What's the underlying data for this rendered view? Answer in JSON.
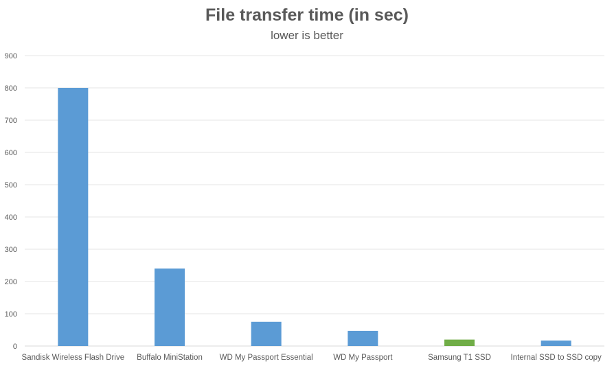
{
  "chart_data": {
    "type": "bar",
    "title": "File transfer time (in sec)",
    "subtitle": "lower is better",
    "xlabel": "",
    "ylabel": "",
    "categories": [
      "Sandisk Wireless Flash Drive",
      "Buffalo MiniStation",
      "WD My Passport Essential",
      "WD My Passport",
      "Samsung T1 SSD",
      "Internal SSD to SSD copy"
    ],
    "values": [
      800,
      240,
      75,
      47,
      20,
      17
    ],
    "bar_colors": [
      "#5b9bd5",
      "#5b9bd5",
      "#5b9bd5",
      "#5b9bd5",
      "#70ad47",
      "#5b9bd5"
    ],
    "ylim": [
      0,
      900
    ],
    "yticks": [
      0,
      100,
      200,
      300,
      400,
      500,
      600,
      700,
      800,
      900
    ],
    "grid": true,
    "legend": "none"
  }
}
